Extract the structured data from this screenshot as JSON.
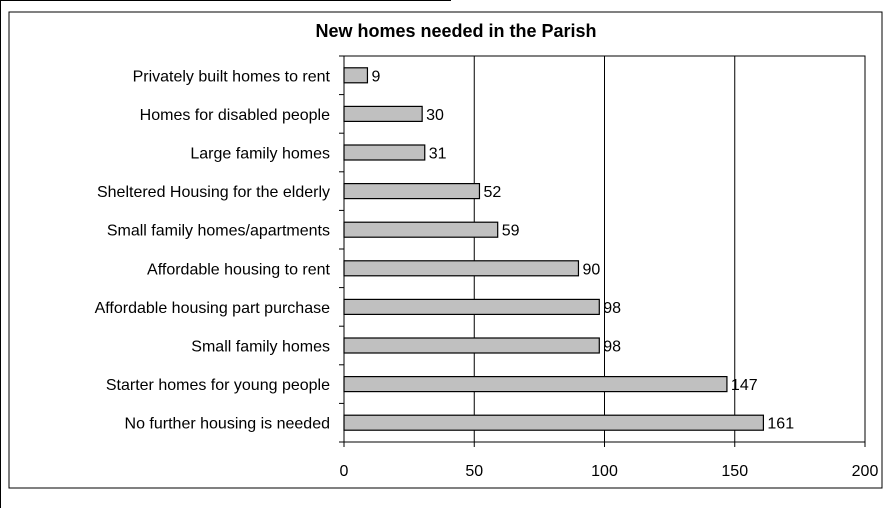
{
  "chart_data": {
    "type": "bar",
    "orientation": "horizontal",
    "title": "New homes needed in the Parish",
    "categories": [
      "Privately built homes to rent",
      "Homes for disabled people",
      "Large family homes",
      "Sheltered Housing for the elderly",
      "Small family homes/apartments",
      "Affordable housing to rent",
      "Affordable housing part purchase",
      "Small family homes",
      "Starter homes for young people",
      "No further housing is needed"
    ],
    "values": [
      9,
      30,
      31,
      52,
      59,
      90,
      98,
      98,
      147,
      161
    ],
    "xlim": [
      0,
      200
    ],
    "xticks": [
      0,
      50,
      100,
      150,
      200
    ],
    "xlabel": "",
    "ylabel": "",
    "grid": "vertical",
    "legend": "none",
    "bar_color": "#c0c0c0",
    "bar_edge_color": "#000000"
  }
}
